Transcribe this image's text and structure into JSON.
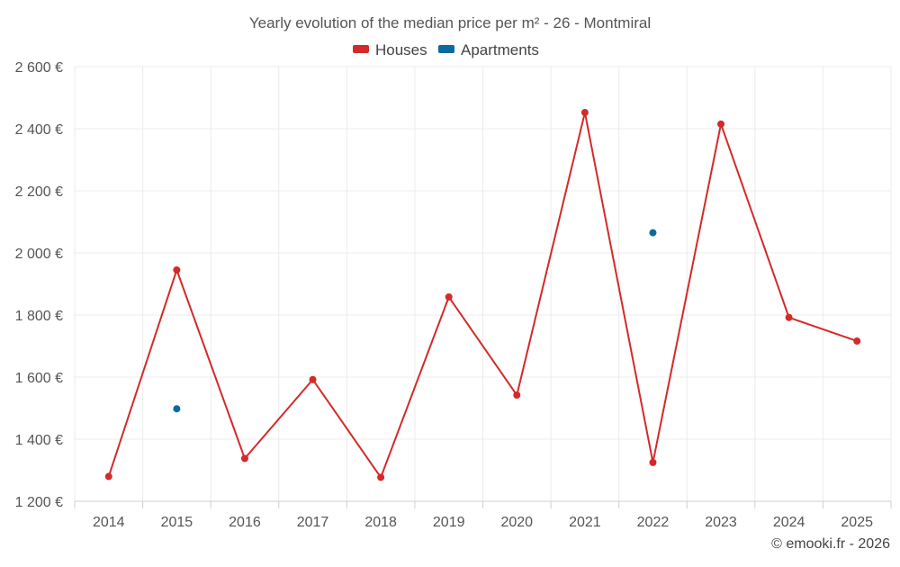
{
  "chart_data": {
    "type": "line",
    "title": "Yearly evolution of the median price per m² - 26 - Montmiral",
    "categories": [
      "2014",
      "2015",
      "2016",
      "2017",
      "2018",
      "2019",
      "2020",
      "2021",
      "2022",
      "2023",
      "2024",
      "2025"
    ],
    "series": [
      {
        "name": "Houses",
        "color": "#d32a2a",
        "values": [
          1280,
          1945,
          1338,
          1592,
          1277,
          1858,
          1542,
          2452,
          1325,
          2415,
          1792,
          1716
        ]
      },
      {
        "name": "Apartments",
        "color": "#0a6aa1",
        "values": [
          null,
          1498,
          null,
          null,
          null,
          null,
          null,
          null,
          2065,
          null,
          null,
          null
        ]
      }
    ],
    "ylim": [
      1200,
      2600
    ],
    "yticks": [
      1200,
      1400,
      1600,
      1800,
      2000,
      2200,
      2400,
      2600
    ],
    "ytick_labels": [
      "1 200 €",
      "1 400 €",
      "1 600 €",
      "1 800 €",
      "2 000 €",
      "2 200 €",
      "2 400 €",
      "2 600 €"
    ],
    "xlabel": "",
    "ylabel": "",
    "grid": true,
    "legend": "top-center"
  },
  "credit": "© emooki.fr - 2026"
}
